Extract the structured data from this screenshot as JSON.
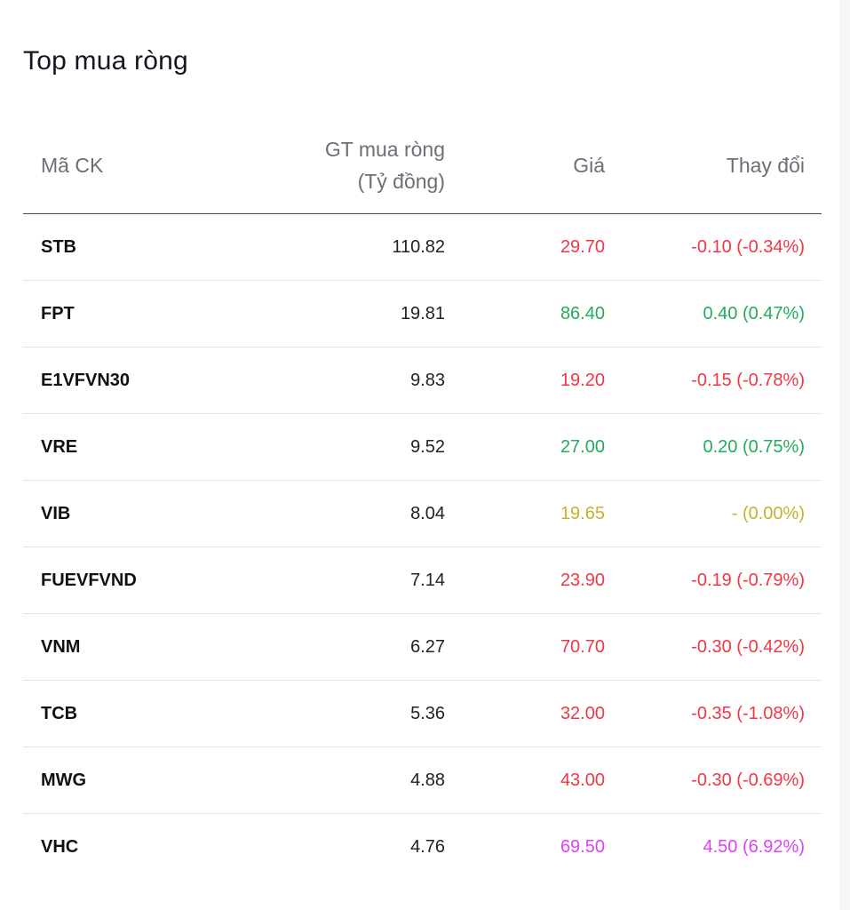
{
  "title": "Top mua ròng",
  "columns": {
    "symbol": "Mã CK",
    "value_line1": "GT mua ròng",
    "value_line2": "(Tỷ đồng)",
    "price": "Giá",
    "change": "Thay đổi"
  },
  "colors": {
    "down": "#f23645",
    "up": "#22ab5a",
    "unchanged": "#c7b02a",
    "ceiling": "#e040fb"
  },
  "rows": [
    {
      "symbol": "STB",
      "value": "110.82",
      "price": "29.70",
      "change": "-0.10 (-0.34%)",
      "status": "down"
    },
    {
      "symbol": "FPT",
      "value": "19.81",
      "price": "86.40",
      "change": "0.40 (0.47%)",
      "status": "up"
    },
    {
      "symbol": "E1VFVN30",
      "value": "9.83",
      "price": "19.20",
      "change": "-0.15 (-0.78%)",
      "status": "down"
    },
    {
      "symbol": "VRE",
      "value": "9.52",
      "price": "27.00",
      "change": "0.20 (0.75%)",
      "status": "up"
    },
    {
      "symbol": "VIB",
      "value": "8.04",
      "price": "19.65",
      "change": "- (0.00%)",
      "status": "unchanged"
    },
    {
      "symbol": "FUEVFVND",
      "value": "7.14",
      "price": "23.90",
      "change": "-0.19 (-0.79%)",
      "status": "down"
    },
    {
      "symbol": "VNM",
      "value": "6.27",
      "price": "70.70",
      "change": "-0.30 (-0.42%)",
      "status": "down"
    },
    {
      "symbol": "TCB",
      "value": "5.36",
      "price": "32.00",
      "change": "-0.35 (-1.08%)",
      "status": "down"
    },
    {
      "symbol": "MWG",
      "value": "4.88",
      "price": "43.00",
      "change": "-0.30 (-0.69%)",
      "status": "down"
    },
    {
      "symbol": "VHC",
      "value": "4.76",
      "price": "69.50",
      "change": "4.50 (6.92%)",
      "status": "ceiling"
    }
  ]
}
